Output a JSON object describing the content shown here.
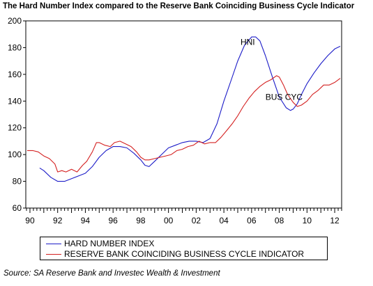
{
  "colors": {
    "hni": "#1c1cc8",
    "bus_cyc": "#d42020"
  },
  "chart_data": {
    "type": "line",
    "title": "The Hard Number Index compared to the Reserve Bank Coinciding  Business Cycle Indicator",
    "xlabel": "",
    "ylabel": "",
    "xlim": [
      1989.7,
      2012.5
    ],
    "ylim": [
      60,
      200
    ],
    "y_ticks": [
      60,
      80,
      100,
      120,
      140,
      160,
      180,
      200
    ],
    "x_tick_years": [
      1990,
      1992,
      1994,
      1996,
      1998,
      2000,
      2002,
      2004,
      2006,
      2008,
      2010,
      2012
    ],
    "x_tick_labels": [
      "90",
      "92",
      "94",
      "96",
      "98",
      "00",
      "02",
      "04",
      "06",
      "08",
      "10",
      "12"
    ],
    "grid": false,
    "legend_position": "bottom",
    "annotations": [
      {
        "text": "HNI",
        "x": 2005.2,
        "y": 182
      },
      {
        "text": "BUS CYC",
        "x": 2007.0,
        "y": 141
      }
    ],
    "series": [
      {
        "key": "hni",
        "name": "HARD NUMBER INDEX",
        "x": [
          1990.7,
          1991.0,
          1991.5,
          1992.0,
          1992.5,
          1993.0,
          1993.5,
          1994.0,
          1994.5,
          1995.0,
          1995.5,
          1996.0,
          1996.5,
          1997.0,
          1997.5,
          1998.0,
          1998.3,
          1998.6,
          1999.0,
          1999.5,
          2000.0,
          2000.5,
          2001.0,
          2001.5,
          2002.0,
          2002.5,
          2003.0,
          2003.5,
          2004.0,
          2004.5,
          2005.0,
          2005.5,
          2006.0,
          2006.3,
          2006.6,
          2007.0,
          2007.5,
          2008.0,
          2008.5,
          2008.8,
          2009.0,
          2009.3,
          2009.6,
          2010.0,
          2010.5,
          2011.0,
          2011.5,
          2012.0,
          2012.4
        ],
        "values": [
          90,
          88,
          83,
          80,
          80,
          82,
          84,
          86,
          91,
          98,
          103,
          106,
          106,
          105,
          101,
          96,
          92,
          91,
          95,
          100,
          105,
          107,
          109,
          110,
          110,
          109,
          112,
          123,
          140,
          155,
          170,
          182,
          188,
          188,
          185,
          174,
          158,
          143,
          135,
          133,
          134,
          138,
          145,
          153,
          161,
          168,
          174,
          179,
          181
        ]
      },
      {
        "key": "bus_cyc",
        "name": "RESERVE BANK COINCIDING BUSINESS CYCLE INDICATOR",
        "x": [
          1989.8,
          1990.2,
          1990.6,
          1991.0,
          1991.4,
          1991.8,
          1992.0,
          1992.3,
          1992.6,
          1993.0,
          1993.4,
          1993.8,
          1994.1,
          1994.5,
          1994.8,
          1995.0,
          1995.4,
          1995.8,
          1996.1,
          1996.5,
          1996.9,
          1997.3,
          1997.7,
          1998.0,
          1998.3,
          1998.6,
          1999.0,
          1999.4,
          1999.8,
          2000.2,
          2000.6,
          2001.0,
          2001.4,
          2001.8,
          2002.2,
          2002.6,
          2003.0,
          2003.4,
          2003.8,
          2004.2,
          2004.6,
          2005.0,
          2005.4,
          2005.8,
          2006.2,
          2006.6,
          2007.0,
          2007.4,
          2007.8,
          2008.0,
          2008.3,
          2008.6,
          2009.0,
          2009.3,
          2009.6,
          2010.0,
          2010.4,
          2010.8,
          2011.2,
          2011.6,
          2012.0,
          2012.4
        ],
        "values": [
          103,
          103,
          102,
          99,
          97,
          93,
          87,
          88,
          87,
          89,
          87,
          92,
          95,
          102,
          109,
          109,
          107,
          106,
          109,
          110,
          108,
          106,
          102,
          98,
          96,
          96,
          97,
          98,
          99,
          100,
          103,
          104,
          106,
          107,
          110,
          108,
          109,
          109,
          113,
          118,
          123,
          129,
          136,
          142,
          147,
          151,
          154,
          156,
          159,
          158,
          152,
          145,
          139,
          136,
          137,
          140,
          145,
          148,
          152,
          152,
          154,
          157
        ]
      }
    ]
  },
  "source_note": "Source: SA Reserve Bank and Investec Wealth & Investment"
}
